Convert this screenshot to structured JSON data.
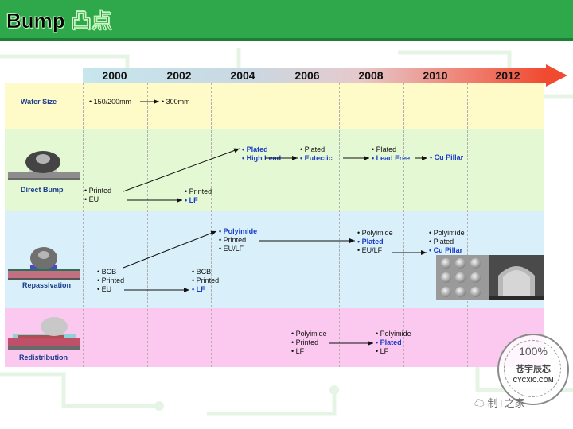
{
  "title": "Bump 凸点",
  "years": [
    "2000",
    "2002",
    "2004",
    "2006",
    "2008",
    "2010",
    "2012"
  ],
  "rows": {
    "wafer": {
      "label": "Wafer Size"
    },
    "direct": {
      "label": "Direct Bump"
    },
    "repass": {
      "label": "Repassivation"
    },
    "redist": {
      "label": "Redistribution"
    }
  },
  "wafer_items": {
    "a": "• 150/200mm",
    "b": "• 300mm"
  },
  "direct_items": {
    "printed_2000": "• Printed",
    "eu_2000": "• EU",
    "printed_2002": "• Printed",
    "lf_2002": "• LF",
    "plated_2004": "• Plated",
    "highlead_2004": "• High Lead",
    "plated_2006": "• Plated",
    "eutectic_2006": "• Eutectic",
    "plated_2008": "• Plated",
    "leadfree_2008": "• Lead Free",
    "cupillar_2010": "• Cu Pillar"
  },
  "repass_items": {
    "bcb_2000": "• BCB",
    "printed_2000": "• Printed",
    "eu_2000": "• EU",
    "bcb_2002": "• BCB",
    "printed_2002": "• Printed",
    "lf_2002": "• LF",
    "polyimide_2004": "• Polyimide",
    "printed_2004": "• Printed",
    "eulf_2004": "• EU/LF",
    "polyimide_2008": "• Polyimide",
    "plated_2008": "• Plated",
    "eulf_2008": "• EU/LF",
    "polyimide_2010": "• Polyimide",
    "plated_2010": "• Plated",
    "cupillar_2010": "• Cu Pillar"
  },
  "redist_items": {
    "polyimide_2006": "• Polyimide",
    "printed_2006": "• Printed",
    "lf_2006": "• LF",
    "polyimide_2008": "• Polyimide",
    "plated_2008": "• Plated",
    "lf_2008": "• LF"
  },
  "watermark": {
    "stamp_pct": "100%",
    "stamp_cn": "苍宇辰芯",
    "stamp_url": "CYCXIC.COM",
    "text": "制T之家"
  },
  "colors": {
    "header": "#2ea84a",
    "wafer_band": "#fffbc8",
    "direct_band": "#e4f8d4",
    "repass_band": "#d9f0fb",
    "redist_band": "#fbc8f0",
    "highlight": "#1a3cc8"
  }
}
